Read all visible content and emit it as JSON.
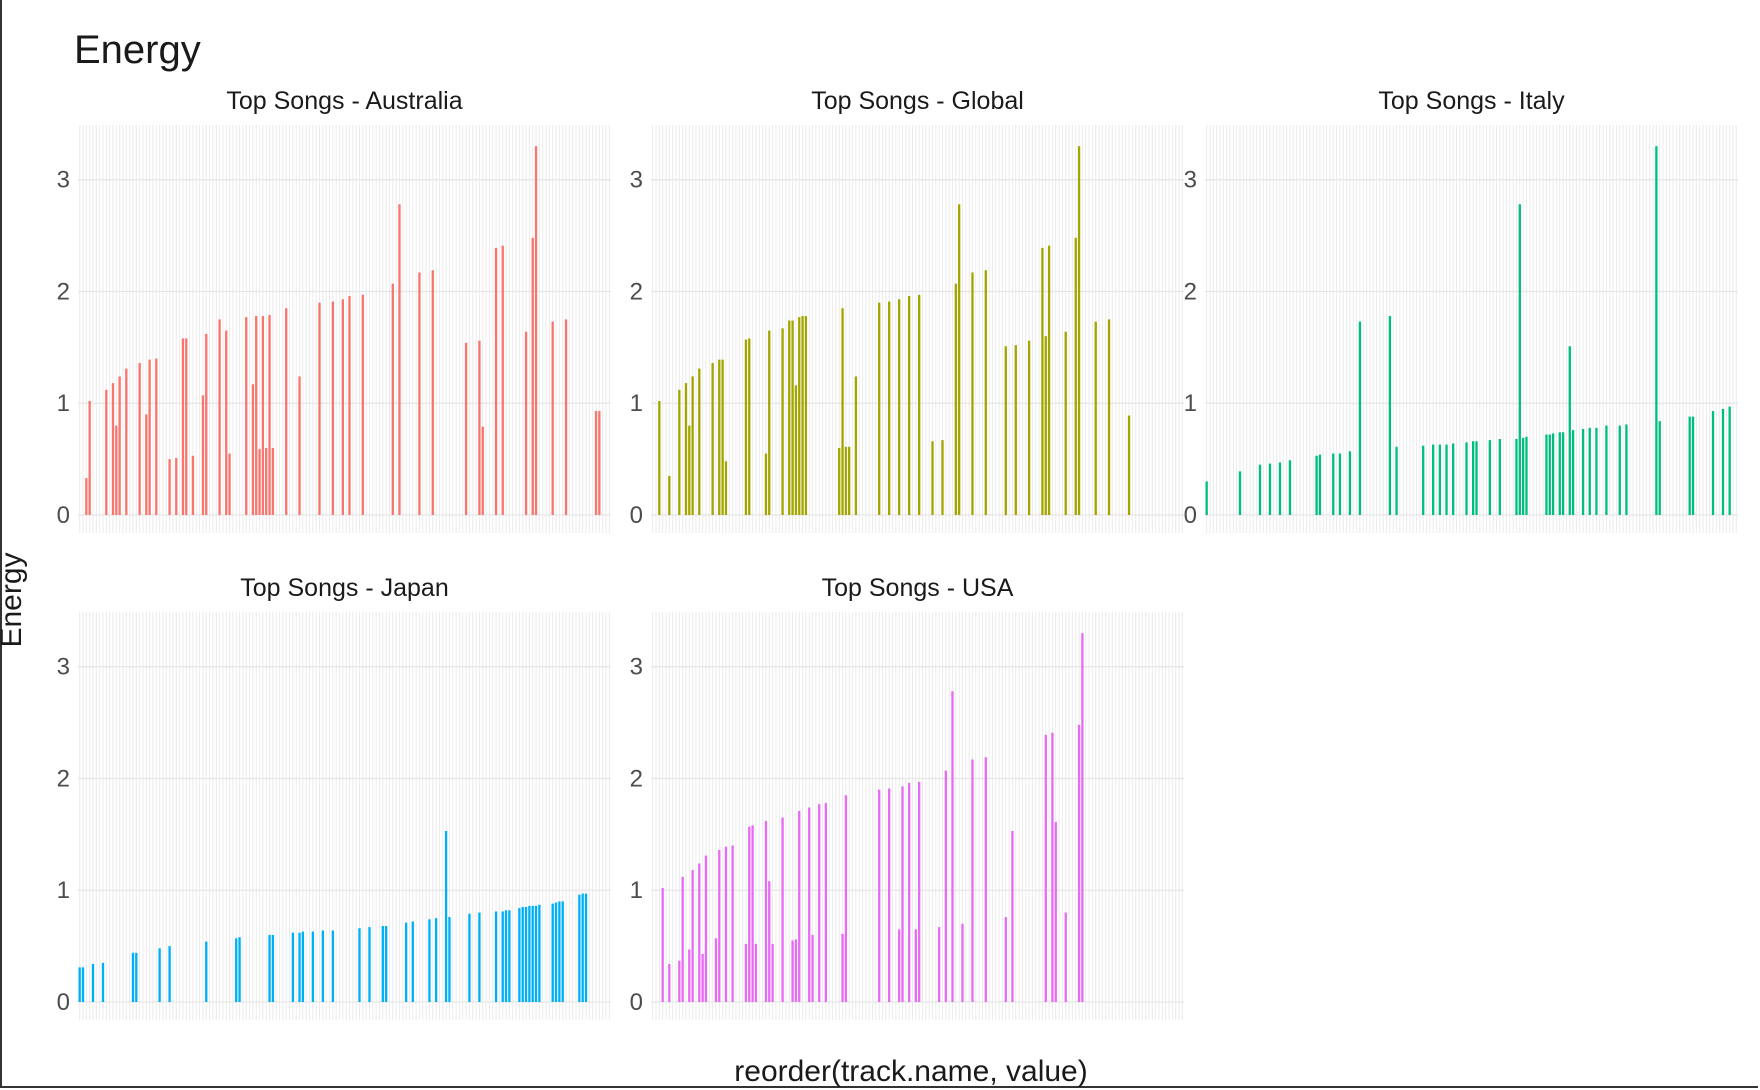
{
  "chart_data": {
    "type": "bar",
    "title": "Energy",
    "xlabel": "reorder(track.name, value)",
    "ylabel": "Energy",
    "ylim": [
      0,
      3.4
    ],
    "y_ticks": [
      0,
      1,
      2,
      3
    ],
    "x_slots": 160,
    "grid": true,
    "legend": "none",
    "facets": [
      {
        "name": "Top Songs - Australia",
        "color": "#F8766D",
        "bars": [
          [
            2,
            0.33
          ],
          [
            3,
            1.02
          ],
          [
            8,
            1.12
          ],
          [
            10,
            1.18
          ],
          [
            11,
            0.8
          ],
          [
            12,
            1.24
          ],
          [
            14,
            1.31
          ],
          [
            18,
            1.36
          ],
          [
            20,
            0.9
          ],
          [
            21,
            1.39
          ],
          [
            23,
            1.4
          ],
          [
            27,
            0.5
          ],
          [
            29,
            0.51
          ],
          [
            31,
            1.58
          ],
          [
            32,
            1.58
          ],
          [
            34,
            0.53
          ],
          [
            37,
            1.07
          ],
          [
            38,
            1.62
          ],
          [
            42,
            1.75
          ],
          [
            44,
            1.65
          ],
          [
            45,
            0.55
          ],
          [
            50,
            1.77
          ],
          [
            52,
            1.17
          ],
          [
            53,
            1.78
          ],
          [
            54,
            0.59
          ],
          [
            55,
            1.78
          ],
          [
            56,
            0.6
          ],
          [
            57,
            1.79
          ],
          [
            58,
            0.6
          ],
          [
            62,
            1.85
          ],
          [
            66,
            1.24
          ],
          [
            72,
            1.9
          ],
          [
            76,
            1.91
          ],
          [
            79,
            1.93
          ],
          [
            81,
            1.96
          ],
          [
            85,
            1.97
          ],
          [
            94,
            2.07
          ],
          [
            96,
            2.78
          ],
          [
            102,
            2.17
          ],
          [
            106,
            2.19
          ],
          [
            116,
            1.54
          ],
          [
            120,
            1.56
          ],
          [
            121,
            0.79
          ],
          [
            125,
            2.39
          ],
          [
            127,
            2.41
          ],
          [
            134,
            1.64
          ],
          [
            136,
            2.48
          ],
          [
            137,
            3.3
          ],
          [
            142,
            1.73
          ],
          [
            146,
            1.75
          ],
          [
            155,
            0.93
          ],
          [
            156,
            0.93
          ]
        ]
      },
      {
        "name": "Top Songs - Global",
        "color": "#A3A500",
        "bars": [
          [
            2,
            1.02
          ],
          [
            5,
            0.35
          ],
          [
            8,
            1.12
          ],
          [
            10,
            1.18
          ],
          [
            11,
            0.8
          ],
          [
            12,
            1.24
          ],
          [
            14,
            1.31
          ],
          [
            18,
            1.36
          ],
          [
            20,
            1.39
          ],
          [
            21,
            1.39
          ],
          [
            22,
            0.48
          ],
          [
            28,
            1.57
          ],
          [
            29,
            1.58
          ],
          [
            34,
            0.55
          ],
          [
            35,
            1.65
          ],
          [
            39,
            1.67
          ],
          [
            41,
            1.74
          ],
          [
            42,
            1.74
          ],
          [
            43,
            1.16
          ],
          [
            44,
            1.77
          ],
          [
            45,
            1.78
          ],
          [
            46,
            1.78
          ],
          [
            56,
            0.6
          ],
          [
            57,
            1.85
          ],
          [
            58,
            0.61
          ],
          [
            59,
            0.61
          ],
          [
            61,
            1.24
          ],
          [
            68,
            1.9
          ],
          [
            71,
            1.91
          ],
          [
            74,
            1.93
          ],
          [
            77,
            1.96
          ],
          [
            80,
            1.97
          ],
          [
            84,
            0.66
          ],
          [
            87,
            0.67
          ],
          [
            91,
            2.07
          ],
          [
            92,
            2.78
          ],
          [
            96,
            2.17
          ],
          [
            100,
            2.19
          ],
          [
            106,
            1.51
          ],
          [
            109,
            1.52
          ],
          [
            113,
            1.56
          ],
          [
            117,
            2.39
          ],
          [
            118,
            1.6
          ],
          [
            119,
            2.41
          ],
          [
            124,
            1.64
          ],
          [
            127,
            2.48
          ],
          [
            128,
            3.3
          ],
          [
            133,
            1.73
          ],
          [
            137,
            1.75
          ],
          [
            143,
            0.89
          ]
        ]
      },
      {
        "name": "Top Songs - Italy",
        "color": "#00BF7D",
        "bars": [
          [
            0,
            0.3
          ],
          [
            10,
            0.39
          ],
          [
            16,
            0.45
          ],
          [
            19,
            0.46
          ],
          [
            22,
            0.47
          ],
          [
            25,
            0.49
          ],
          [
            33,
            0.53
          ],
          [
            34,
            0.54
          ],
          [
            38,
            0.55
          ],
          [
            40,
            0.55
          ],
          [
            43,
            0.57
          ],
          [
            46,
            1.73
          ],
          [
            55,
            1.78
          ],
          [
            57,
            0.61
          ],
          [
            65,
            0.62
          ],
          [
            68,
            0.63
          ],
          [
            70,
            0.63
          ],
          [
            72,
            0.63
          ],
          [
            74,
            0.64
          ],
          [
            78,
            0.65
          ],
          [
            80,
            0.66
          ],
          [
            81,
            0.66
          ],
          [
            85,
            0.67
          ],
          [
            88,
            0.68
          ],
          [
            93,
            0.68
          ],
          [
            94,
            2.78
          ],
          [
            95,
            0.69
          ],
          [
            96,
            0.7
          ],
          [
            102,
            0.72
          ],
          [
            103,
            0.72
          ],
          [
            104,
            0.73
          ],
          [
            106,
            0.74
          ],
          [
            107,
            0.74
          ],
          [
            109,
            1.51
          ],
          [
            110,
            0.76
          ],
          [
            113,
            0.77
          ],
          [
            115,
            0.78
          ],
          [
            117,
            0.78
          ],
          [
            120,
            0.8
          ],
          [
            124,
            0.8
          ],
          [
            126,
            0.81
          ],
          [
            135,
            3.3
          ],
          [
            136,
            0.84
          ],
          [
            145,
            0.88
          ],
          [
            146,
            0.88
          ],
          [
            152,
            0.93
          ],
          [
            155,
            0.95
          ],
          [
            157,
            0.97
          ]
        ]
      },
      {
        "name": "Top Songs - Japan",
        "color": "#00B0F6",
        "bars": [
          [
            0,
            0.31
          ],
          [
            1,
            0.31
          ],
          [
            4,
            0.34
          ],
          [
            7,
            0.35
          ],
          [
            16,
            0.44
          ],
          [
            17,
            0.44
          ],
          [
            24,
            0.48
          ],
          [
            27,
            0.5
          ],
          [
            38,
            0.54
          ],
          [
            47,
            0.57
          ],
          [
            48,
            0.58
          ],
          [
            57,
            0.6
          ],
          [
            58,
            0.6
          ],
          [
            64,
            0.62
          ],
          [
            66,
            0.62
          ],
          [
            67,
            0.63
          ],
          [
            70,
            0.63
          ],
          [
            73,
            0.64
          ],
          [
            76,
            0.64
          ],
          [
            84,
            0.66
          ],
          [
            87,
            0.67
          ],
          [
            91,
            0.68
          ],
          [
            92,
            0.68
          ],
          [
            98,
            0.71
          ],
          [
            100,
            0.72
          ],
          [
            105,
            0.74
          ],
          [
            107,
            0.75
          ],
          [
            110,
            1.53
          ],
          [
            111,
            0.76
          ],
          [
            117,
            0.79
          ],
          [
            120,
            0.8
          ],
          [
            125,
            0.81
          ],
          [
            127,
            0.81
          ],
          [
            128,
            0.82
          ],
          [
            129,
            0.82
          ],
          [
            132,
            0.84
          ],
          [
            133,
            0.85
          ],
          [
            134,
            0.85
          ],
          [
            135,
            0.86
          ],
          [
            136,
            0.86
          ],
          [
            137,
            0.86
          ],
          [
            138,
            0.87
          ],
          [
            142,
            0.88
          ],
          [
            143,
            0.89
          ],
          [
            144,
            0.9
          ],
          [
            145,
            0.9
          ],
          [
            150,
            0.96
          ],
          [
            151,
            0.97
          ],
          [
            152,
            0.97
          ]
        ]
      },
      {
        "name": "Top Songs - USA",
        "color": "#E76BF3",
        "bars": [
          [
            3,
            1.02
          ],
          [
            5,
            0.34
          ],
          [
            8,
            0.37
          ],
          [
            9,
            1.12
          ],
          [
            11,
            0.47
          ],
          [
            12,
            1.18
          ],
          [
            14,
            1.24
          ],
          [
            15,
            0.43
          ],
          [
            16,
            1.31
          ],
          [
            19,
            0.57
          ],
          [
            20,
            1.36
          ],
          [
            22,
            1.39
          ],
          [
            24,
            1.4
          ],
          [
            28,
            0.52
          ],
          [
            29,
            1.57
          ],
          [
            30,
            1.58
          ],
          [
            31,
            0.52
          ],
          [
            34,
            1.62
          ],
          [
            35,
            1.08
          ],
          [
            36,
            0.52
          ],
          [
            39,
            1.65
          ],
          [
            42,
            0.55
          ],
          [
            43,
            0.56
          ],
          [
            44,
            1.71
          ],
          [
            47,
            1.74
          ],
          [
            48,
            0.6
          ],
          [
            50,
            1.77
          ],
          [
            52,
            1.78
          ],
          [
            57,
            0.61
          ],
          [
            58,
            1.85
          ],
          [
            68,
            1.9
          ],
          [
            71,
            1.91
          ],
          [
            74,
            0.65
          ],
          [
            75,
            1.93
          ],
          [
            77,
            1.96
          ],
          [
            79,
            0.65
          ],
          [
            80,
            1.97
          ],
          [
            86,
            0.67
          ],
          [
            88,
            2.07
          ],
          [
            90,
            2.78
          ],
          [
            93,
            0.7
          ],
          [
            96,
            2.17
          ],
          [
            100,
            2.19
          ],
          [
            106,
            0.76
          ],
          [
            108,
            1.53
          ],
          [
            118,
            2.39
          ],
          [
            120,
            2.41
          ],
          [
            121,
            1.61
          ],
          [
            124,
            0.8
          ],
          [
            128,
            2.48
          ],
          [
            129,
            3.3
          ]
        ]
      }
    ]
  }
}
